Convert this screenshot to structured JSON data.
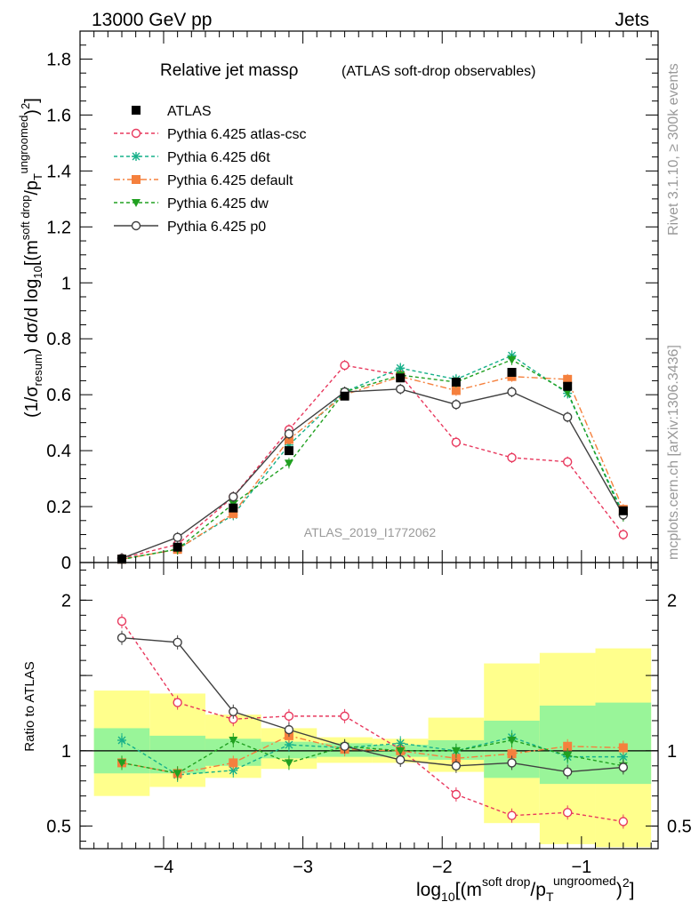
{
  "header": {
    "energy_label": "13000 GeV pp",
    "process_label": "Jets",
    "title": "Relative jet massρ",
    "subtitle": "(ATLAS soft-drop observables)",
    "watermark": "ATLAS_2019_I1772062",
    "side_label_rivet": "Rivet 3.1.10, ≥ 300k events",
    "side_label_mcplots": "mcplots.cern.ch [arXiv:1306.3436]"
  },
  "axes": {
    "ylabel_top": "(1/σresum) dσ/d log10[(msoft drop/pTungroomed)2]",
    "ylabel_bottom": "Ratio to ATLAS",
    "xlabel": "log10[(msoft drop/pTungroomed)2]"
  },
  "legend": [
    {
      "label": "ATLAS",
      "color": "#000000",
      "marker": "square-filled",
      "dash": "none"
    },
    {
      "label": "Pythia 6.425 atlas-csc",
      "color": "#e8395e",
      "marker": "circle-open",
      "dash": "4,3"
    },
    {
      "label": "Pythia 6.425 d6t",
      "color": "#17b08a",
      "marker": "star",
      "dash": "4,3"
    },
    {
      "label": "Pythia 6.425 default",
      "color": "#f5803d",
      "marker": "square-filled",
      "dash": "7,3,2,3"
    },
    {
      "label": "Pythia 6.425 dw",
      "color": "#20a020",
      "marker": "triangle-down",
      "dash": "4,3"
    },
    {
      "label": "Pythia 6.425 p0",
      "color": "#404040",
      "marker": "circle-open",
      "dash": "none"
    }
  ],
  "chart_data": {
    "type": "line",
    "title": "Relative jet massρ (ATLAS soft-drop observables)",
    "xlabel": "log10[(msoft drop/pTungroomed)2]",
    "ylabel": "(1/σresum) dσ/d log10[(msoft drop/pTungroomed)2]",
    "xlim": [
      -4.6,
      -0.45
    ],
    "ylim_main": [
      0,
      1.9
    ],
    "ylim_ratio": [
      0.35,
      2.25
    ],
    "x_ticks_major": [
      -4,
      -3,
      -2,
      -1
    ],
    "x_tick_labels": [
      "−4",
      "−3",
      "−2",
      "−1"
    ],
    "y_ticks_main": [
      0,
      0.2,
      0.4,
      0.6,
      0.8,
      1,
      1.2,
      1.4,
      1.6,
      1.8
    ],
    "y_tick_labels_main": [
      "0",
      "0.2",
      "0.4",
      "0.6",
      "0.8",
      "1",
      "1.2",
      "1.4",
      "1.6",
      "1.8"
    ],
    "y_ticks_ratio": [
      0.5,
      1,
      2
    ],
    "y_tick_labels_ratio": [
      "0.5",
      "1",
      "2"
    ],
    "bin_edges": [
      -4.5,
      -4.1,
      -3.7,
      -3.3,
      -2.9,
      -2.5,
      -2.1,
      -1.7,
      -1.3,
      -0.9,
      -0.5
    ],
    "x": [
      -4.3,
      -3.9,
      -3.5,
      -3.1,
      -2.7,
      -2.3,
      -1.9,
      -1.5,
      -1.1,
      -0.7
    ],
    "data": {
      "name": "ATLAS",
      "values": [
        0.012,
        0.055,
        0.195,
        0.4,
        0.595,
        0.66,
        0.645,
        0.68,
        0.63,
        0.185
      ]
    },
    "ratio_band_green": [
      [
        0.85,
        1.15
      ],
      [
        0.85,
        1.1
      ],
      [
        0.9,
        1.08
      ],
      [
        0.95,
        1.06
      ],
      [
        0.96,
        1.05
      ],
      [
        0.96,
        1.04
      ],
      [
        0.94,
        1.07
      ],
      [
        0.82,
        1.2
      ],
      [
        0.78,
        1.3
      ],
      [
        0.78,
        1.32
      ]
    ],
    "ratio_band_yellow": [
      [
        0.7,
        1.4
      ],
      [
        0.76,
        1.38
      ],
      [
        0.82,
        1.24
      ],
      [
        0.88,
        1.15
      ],
      [
        0.92,
        1.09
      ],
      [
        0.92,
        1.08
      ],
      [
        0.86,
        1.22
      ],
      [
        0.52,
        1.58
      ],
      [
        0.38,
        1.65
      ],
      [
        0.36,
        1.68
      ]
    ],
    "series": [
      {
        "name": "Pythia 6.425 atlas-csc",
        "color": "#e8395e",
        "values": [
          0.015,
          0.065,
          0.235,
          0.475,
          0.705,
          0.67,
          0.43,
          0.375,
          0.36,
          0.1
        ],
        "ratio": [
          1.86,
          1.32,
          1.21,
          1.23,
          1.23,
          1.01,
          0.71,
          0.57,
          0.59,
          0.53
        ]
      },
      {
        "name": "Pythia 6.425 d6t",
        "color": "#17b08a",
        "values": [
          0.012,
          0.048,
          0.17,
          0.42,
          0.61,
          0.695,
          0.655,
          0.74,
          0.605,
          0.175
        ],
        "ratio": [
          1.07,
          0.84,
          0.87,
          1.04,
          1.02,
          1.05,
          1.0,
          1.09,
          0.96,
          0.96
        ]
      },
      {
        "name": "Pythia 6.425 default",
        "color": "#f5803d",
        "values": [
          0.012,
          0.047,
          0.175,
          0.44,
          0.6,
          0.665,
          0.615,
          0.665,
          0.655,
          0.19
        ],
        "ratio": [
          0.92,
          0.85,
          0.92,
          1.1,
          1.01,
          1.0,
          0.95,
          0.98,
          1.03,
          1.02
        ]
      },
      {
        "name": "Pythia 6.425 dw",
        "color": "#20a020",
        "values": [
          0.011,
          0.048,
          0.21,
          0.355,
          0.61,
          0.67,
          0.645,
          0.725,
          0.61,
          0.165
        ],
        "ratio": [
          0.92,
          0.85,
          1.07,
          0.92,
          1.03,
          1.0,
          1.0,
          1.07,
          0.97,
          0.9
        ]
      },
      {
        "name": "Pythia 6.425 p0",
        "color": "#404040",
        "values": [
          0.015,
          0.09,
          0.235,
          0.46,
          0.61,
          0.62,
          0.565,
          0.61,
          0.52,
          0.17
        ],
        "ratio": [
          1.75,
          1.72,
          1.26,
          1.14,
          1.03,
          0.94,
          0.9,
          0.92,
          0.86,
          0.89
        ]
      }
    ]
  }
}
